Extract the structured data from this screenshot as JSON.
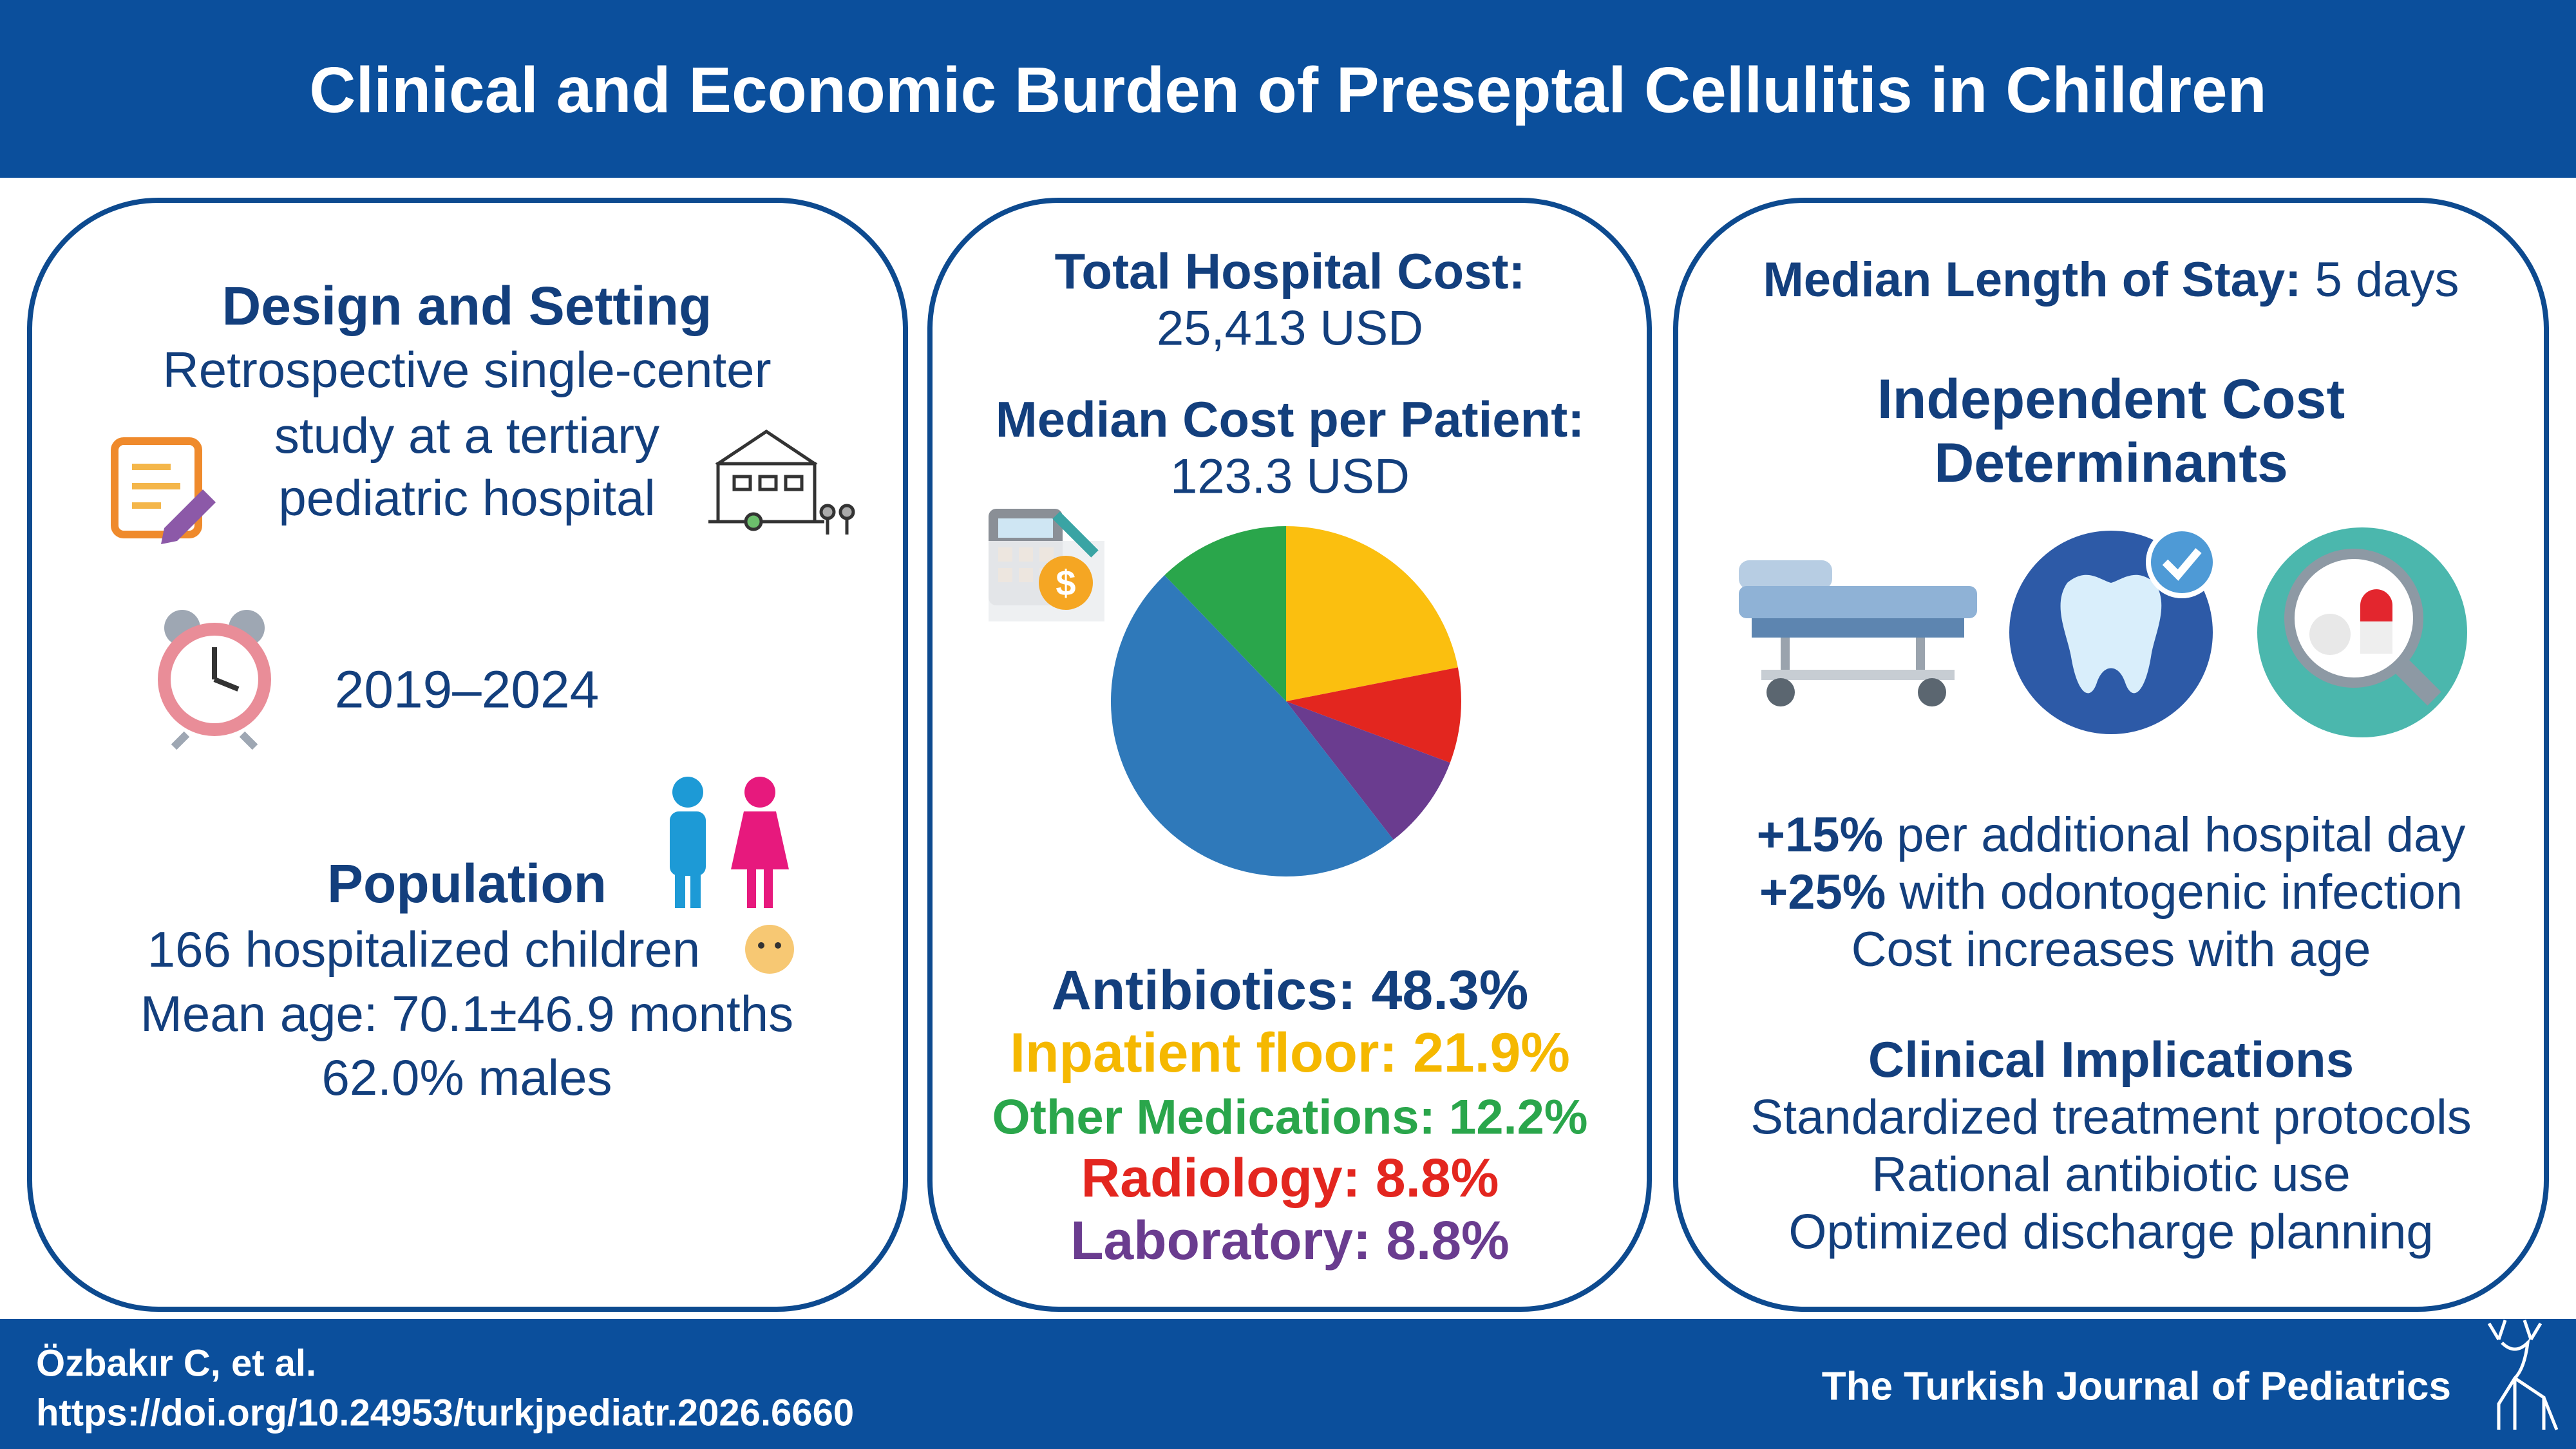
{
  "header": {
    "title": "Clinical and Economic Burden of Preseptal Cellulitis in Children"
  },
  "design": {
    "heading": "Design and Setting",
    "lines": [
      "Retrospective single-center",
      "study at a tertiary",
      "pediatric hospital"
    ],
    "period": "2019–2024"
  },
  "population": {
    "heading": "Population",
    "lines": [
      "166 hospitalized children",
      "Mean age: 70.1±46.9 months",
      "62.0% males"
    ]
  },
  "cost": {
    "total_label": "Total Hospital Cost:",
    "total_value": "25,413 USD",
    "median_label": "Median Cost per Patient:",
    "median_value": "123.3 USD"
  },
  "chart_data": {
    "type": "pie",
    "categories": [
      "Inpatient floor",
      "Radiology",
      "Laboratory",
      "Antibiotics",
      "Other Medications"
    ],
    "values": [
      21.9,
      8.8,
      8.8,
      48.3,
      12.2
    ],
    "colors": [
      "#fbbf0f",
      "#e3261f",
      "#6a3c8f",
      "#2f79ba",
      "#2aa64b"
    ],
    "legend_entries": [
      {
        "text": "Antibiotics: 48.3%",
        "color": "#133f7d"
      },
      {
        "text": "Inpatient floor: 21.9%",
        "color": "#f5b800"
      },
      {
        "text": "Other Medications: 12.2%",
        "color": "#2aa64b"
      },
      {
        "text": "Radiology: 8.8%",
        "color": "#e3261f"
      },
      {
        "text": "Laboratory: 8.8%",
        "color": "#6a3c8f"
      }
    ]
  },
  "stay": {
    "label": "Median Length of Stay:",
    "value": " 5 days"
  },
  "determinants": {
    "heading": [
      "Independent Cost",
      "Determinants"
    ],
    "items": [
      {
        "bold": "+15%",
        "text": " per additional hospital day"
      },
      {
        "bold": "+25%",
        "text": " with odontogenic infection"
      },
      {
        "bold": "",
        "text": "Cost increases with age"
      }
    ]
  },
  "implications": {
    "heading": "Clinical Implications",
    "lines": [
      "Standardized treatment protocols",
      "Rational antibiotic use",
      "Optimized discharge planning"
    ]
  },
  "footer": {
    "author": "Özbakır C, et al.",
    "doi": "https://doi.org/10.24953/turkjpediatr.2026.6660",
    "journal": "The Turkish Journal of Pediatrics"
  }
}
